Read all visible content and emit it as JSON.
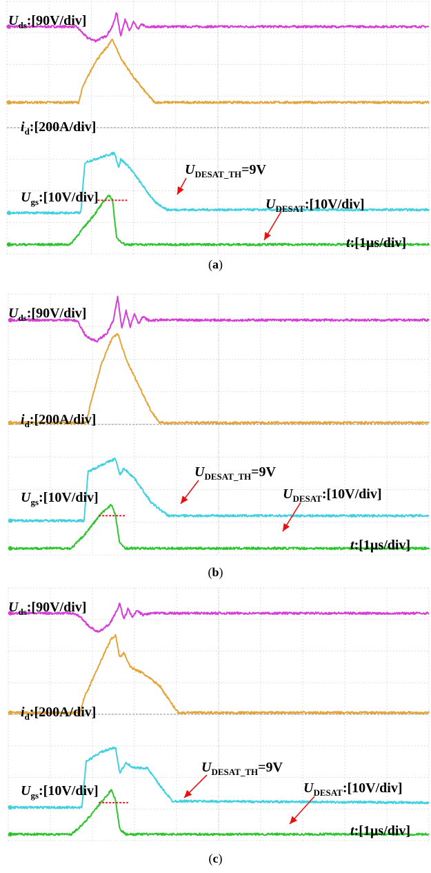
{
  "figure": {
    "captions": [
      "(a)",
      "(b)",
      "(c)"
    ]
  },
  "labels": {
    "uds": {
      "main": "U",
      "sub": "ds",
      "scale": ":[90V/div]"
    },
    "id": {
      "main": "i",
      "sub": "d",
      "scale": ":[200A/div]"
    },
    "ugs": {
      "main": "U",
      "sub": "gs",
      "scale": ":[10V/div]"
    },
    "udesat_th": {
      "main": "U",
      "sub": "DESAT_TH",
      "scale": "=9V"
    },
    "udesat": {
      "main": "U",
      "sub": "DESAT",
      "scale": ":[10V/div]"
    },
    "time": {
      "main": "t",
      "scale": ":[1µs/div]"
    }
  },
  "colors": {
    "uds": "#d63dd6",
    "id": "#e3a43a",
    "ugs": "#3fd1e0",
    "udesat": "#2ec42e",
    "threshold": "#e02020",
    "arrow": "#e81010",
    "grid": "#c8c8c8"
  },
  "chart_data": [
    {
      "type": "line",
      "panel": "a",
      "x_unit": "µs",
      "xlim": [
        0,
        10
      ],
      "divisions": [
        10,
        8
      ],
      "series": [
        {
          "name": "Uds",
          "values": [
            [
              0,
              7.2
            ],
            [
              1.55,
              7.2
            ],
            [
              1.65,
              7.2
            ],
            [
              1.9,
              6.85
            ],
            [
              2.1,
              6.75
            ],
            [
              2.35,
              6.9
            ],
            [
              2.5,
              7.2
            ],
            [
              2.6,
              7.65
            ],
            [
              2.7,
              6.9
            ],
            [
              2.8,
              7.45
            ],
            [
              2.9,
              7.05
            ],
            [
              3.0,
              7.35
            ],
            [
              3.1,
              7.12
            ],
            [
              3.2,
              7.28
            ],
            [
              3.3,
              7.18
            ],
            [
              3.5,
              7.2
            ],
            [
              10,
              7.2
            ]
          ]
        },
        {
          "name": "id",
          "values": [
            [
              0,
              4.8
            ],
            [
              1.7,
              4.8
            ],
            [
              1.8,
              5.3
            ],
            [
              2.1,
              6.1
            ],
            [
              2.4,
              6.6
            ],
            [
              2.5,
              6.8
            ],
            [
              2.7,
              6.2
            ],
            [
              3.0,
              5.6
            ],
            [
              3.3,
              5.1
            ],
            [
              3.5,
              4.8
            ],
            [
              10,
              4.8
            ]
          ]
        },
        {
          "name": "Ugs",
          "values": [
            [
              0,
              1.3
            ],
            [
              1.75,
              1.3
            ],
            [
              1.85,
              2.9
            ],
            [
              2.2,
              3.05
            ],
            [
              2.55,
              3.2
            ],
            [
              2.65,
              2.75
            ],
            [
              2.7,
              3.0
            ],
            [
              2.9,
              2.75
            ],
            [
              3.2,
              2.2
            ],
            [
              3.5,
              1.65
            ],
            [
              3.8,
              1.4
            ],
            [
              10,
              1.4
            ]
          ]
        },
        {
          "name": "UDESAT",
          "values": [
            [
              0,
              0.3
            ],
            [
              1.5,
              0.3
            ],
            [
              1.8,
              0.8
            ],
            [
              2.1,
              1.3
            ],
            [
              2.4,
              1.85
            ],
            [
              2.5,
              1.75
            ],
            [
              2.6,
              0.5
            ],
            [
              2.8,
              0.3
            ],
            [
              10,
              0.3
            ]
          ]
        }
      ],
      "threshold": {
        "x": [
          2.15,
          2.85
        ],
        "y": 1.7
      }
    },
    {
      "type": "line",
      "panel": "b",
      "x_unit": "µs",
      "xlim": [
        0,
        10
      ],
      "divisions": [
        10,
        8
      ],
      "series": [
        {
          "name": "Uds",
          "values": [
            [
              0,
              7.2
            ],
            [
              1.55,
              7.2
            ],
            [
              1.65,
              7.15
            ],
            [
              1.85,
              6.7
            ],
            [
              2.1,
              6.55
            ],
            [
              2.35,
              6.8
            ],
            [
              2.5,
              7.2
            ],
            [
              2.6,
              7.9
            ],
            [
              2.7,
              6.95
            ],
            [
              2.8,
              7.5
            ],
            [
              2.9,
              7.0
            ],
            [
              3.0,
              7.4
            ],
            [
              3.1,
              7.1
            ],
            [
              3.2,
              7.3
            ],
            [
              3.35,
              7.18
            ],
            [
              3.55,
              7.2
            ],
            [
              10,
              7.2
            ]
          ]
        },
        {
          "name": "id",
          "values": [
            [
              0,
              4.05
            ],
            [
              1.85,
              4.05
            ],
            [
              1.95,
              4.6
            ],
            [
              2.2,
              5.8
            ],
            [
              2.45,
              6.6
            ],
            [
              2.6,
              6.8
            ],
            [
              2.8,
              6.0
            ],
            [
              3.1,
              5.2
            ],
            [
              3.4,
              4.4
            ],
            [
              3.6,
              4.05
            ],
            [
              10,
              4.05
            ]
          ]
        },
        {
          "name": "Ugs",
          "values": [
            [
              0,
              1.05
            ],
            [
              1.8,
              1.05
            ],
            [
              1.9,
              2.55
            ],
            [
              2.2,
              2.75
            ],
            [
              2.55,
              2.95
            ],
            [
              2.65,
              2.45
            ],
            [
              2.75,
              2.65
            ],
            [
              3.0,
              2.35
            ],
            [
              3.4,
              1.6
            ],
            [
              3.8,
              1.2
            ],
            [
              10,
              1.2
            ]
          ]
        },
        {
          "name": "UDESAT",
          "values": [
            [
              0,
              0.2
            ],
            [
              1.5,
              0.2
            ],
            [
              1.8,
              0.6
            ],
            [
              2.2,
              1.25
            ],
            [
              2.45,
              1.55
            ],
            [
              2.55,
              1.2
            ],
            [
              2.65,
              0.35
            ],
            [
              2.8,
              0.2
            ],
            [
              10,
              0.2
            ]
          ]
        }
      ],
      "threshold": {
        "x": [
          2.15,
          2.8
        ],
        "y": 1.2
      }
    },
    {
      "type": "line",
      "panel": "c",
      "x_unit": "µs",
      "xlim": [
        0,
        10
      ],
      "divisions": [
        10,
        8
      ],
      "series": [
        {
          "name": "Uds",
          "values": [
            [
              0,
              7.2
            ],
            [
              1.55,
              7.2
            ],
            [
              1.7,
              7.1
            ],
            [
              1.95,
              6.75
            ],
            [
              2.15,
              6.6
            ],
            [
              2.4,
              6.85
            ],
            [
              2.55,
              7.2
            ],
            [
              2.65,
              7.5
            ],
            [
              2.75,
              7.0
            ],
            [
              2.85,
              7.35
            ],
            [
              2.95,
              7.05
            ],
            [
              3.05,
              7.28
            ],
            [
              3.2,
              7.15
            ],
            [
              3.4,
              7.2
            ],
            [
              10,
              7.2
            ]
          ]
        },
        {
          "name": "id",
          "values": [
            [
              0,
              4.05
            ],
            [
              1.7,
              4.05
            ],
            [
              1.8,
              4.5
            ],
            [
              2.1,
              5.4
            ],
            [
              2.45,
              6.4
            ],
            [
              2.55,
              6.5
            ],
            [
              2.65,
              5.8
            ],
            [
              2.75,
              5.95
            ],
            [
              2.9,
              5.5
            ],
            [
              3.2,
              5.3
            ],
            [
              3.6,
              4.9
            ],
            [
              3.9,
              4.3
            ],
            [
              4.05,
              4.05
            ],
            [
              10,
              4.05
            ]
          ]
        },
        {
          "name": "Ugs",
          "values": [
            [
              0,
              1.05
            ],
            [
              1.75,
              1.05
            ],
            [
              1.85,
              2.5
            ],
            [
              2.2,
              2.8
            ],
            [
              2.55,
              2.95
            ],
            [
              2.65,
              2.15
            ],
            [
              2.8,
              2.45
            ],
            [
              3.0,
              2.3
            ],
            [
              3.3,
              2.3
            ],
            [
              3.6,
              1.75
            ],
            [
              3.9,
              1.25
            ],
            [
              10,
              1.2
            ]
          ]
        },
        {
          "name": "UDESAT",
          "values": [
            [
              0,
              0.2
            ],
            [
              1.5,
              0.2
            ],
            [
              1.8,
              0.55
            ],
            [
              2.2,
              1.2
            ],
            [
              2.45,
              1.6
            ],
            [
              2.55,
              1.3
            ],
            [
              2.65,
              0.35
            ],
            [
              2.8,
              0.2
            ],
            [
              10,
              0.2
            ]
          ]
        }
      ],
      "threshold": {
        "x": [
          2.15,
          2.85
        ],
        "y": 1.2
      }
    }
  ]
}
